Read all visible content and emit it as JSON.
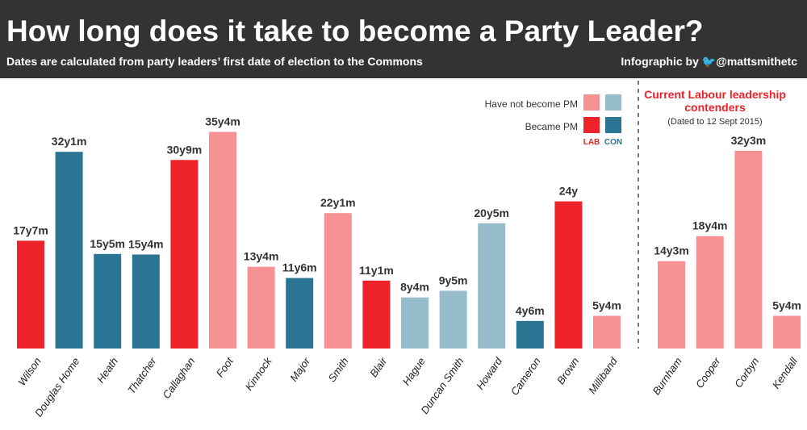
{
  "header": {
    "title": "How long does it take to become a Party Leader?",
    "subtitle": "Dates are calculated from party leaders’ first date of election to the Commons",
    "credit_prefix": "Infographic by",
    "credit_handle": "@mattsmithetc",
    "credit_icon": "twitter-bird-icon"
  },
  "colors": {
    "lab_pm": "#ee2229",
    "lab_not_pm": "#f69194",
    "con_pm": "#2b7493",
    "con_not_pm": "#97bccb"
  },
  "legend": {
    "not_pm": "Have not become PM",
    "pm": "Became PM",
    "lab": "LAB",
    "con": "CON"
  },
  "contenders": {
    "title_line1": "Current Labour leadership",
    "title_line2": "contenders",
    "note": "(Dated to 12 Sept 2015)"
  },
  "chart_data": [
    {
      "type": "bar",
      "categories": [
        "Wilson",
        "Douglas Home",
        "Heath",
        "Thatcher",
        "Callaghan",
        "Foot",
        "Kinnock",
        "Major",
        "Smith",
        "Blair",
        "Hague",
        "Duncan Smith",
        "Howard",
        "Cameron",
        "Brown",
        "Milliband"
      ],
      "labels": [
        "17y7m",
        "32y1m",
        "15y5m",
        "15y4m",
        "30y9m",
        "35y4m",
        "13y4m",
        "11y6m",
        "22y1m",
        "11y1m",
        "8y4m",
        "9y5m",
        "20y5m",
        "4y6m",
        "24y",
        "5y4m"
      ],
      "values": [
        17.58,
        32.08,
        15.42,
        15.33,
        30.75,
        35.33,
        13.33,
        11.5,
        22.08,
        11.08,
        8.33,
        9.42,
        20.42,
        4.5,
        24,
        5.33
      ],
      "party": [
        "LAB",
        "CON",
        "CON",
        "CON",
        "LAB",
        "LAB",
        "LAB",
        "CON",
        "LAB",
        "LAB",
        "CON",
        "CON",
        "CON",
        "CON",
        "LAB",
        "LAB"
      ],
      "became_pm": [
        true,
        true,
        true,
        true,
        true,
        false,
        false,
        true,
        false,
        true,
        false,
        false,
        false,
        true,
        true,
        false
      ]
    },
    {
      "type": "bar",
      "categories": [
        "Burnham",
        "Cooper",
        "Corbyn",
        "Kendall"
      ],
      "labels": [
        "14y3m",
        "18y4m",
        "32y3m",
        "5y4m"
      ],
      "values": [
        14.25,
        18.33,
        32.25,
        5.33
      ],
      "party": [
        "LAB",
        "LAB",
        "LAB",
        "LAB"
      ],
      "became_pm": [
        false,
        false,
        false,
        false
      ]
    }
  ]
}
